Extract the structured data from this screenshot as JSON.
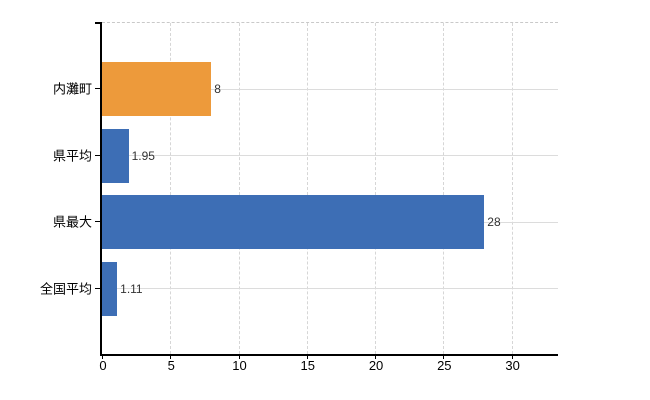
{
  "chart_data": {
    "type": "bar",
    "orientation": "horizontal",
    "categories": [
      "内灘町",
      "県平均",
      "県最大",
      "全国平均"
    ],
    "values": [
      8,
      1.95,
      28,
      1.11
    ],
    "value_labels": [
      "8",
      "1.95",
      "28",
      "1.11"
    ],
    "bar_colors": [
      "#ED9A3B",
      "#3D6EB5",
      "#3D6EB5",
      "#3D6EB5"
    ],
    "x_ticks": [
      0,
      5,
      10,
      15,
      20,
      25,
      30
    ],
    "x_tick_labels": [
      "0",
      "5",
      "10",
      "15",
      "20",
      "25",
      "30"
    ],
    "xlim": [
      0,
      33.4
    ],
    "grid": true,
    "legend": false,
    "colors": {
      "highlight_bar": "#ED9A3B",
      "default_bar": "#3D6EB5",
      "grid_line": "#DCDCDC",
      "axis": "#000000",
      "text": "#000000",
      "value_text": "#333333",
      "background": "#FFFFFF"
    }
  }
}
